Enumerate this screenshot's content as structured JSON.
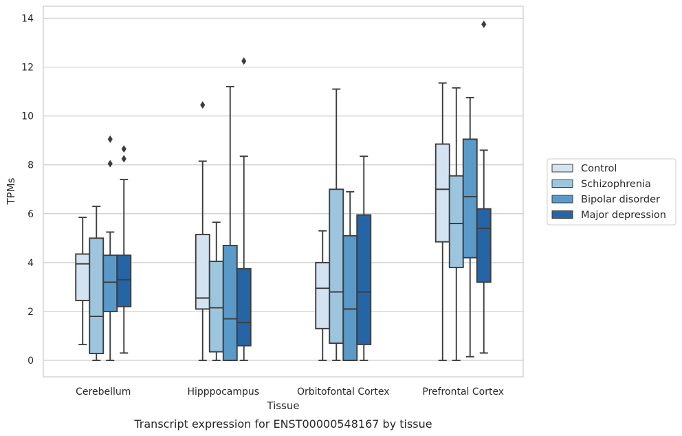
{
  "chart_data": {
    "type": "box",
    "caption": "Transcript expression for ENST00000548167 by tissue",
    "xlabel": "Tissue",
    "ylabel": "TPMs",
    "ylim": [
      -0.65,
      14.5
    ],
    "yticks": [
      0,
      2,
      4,
      6,
      8,
      10,
      12,
      14
    ],
    "grid": "horizontal",
    "legend_position": "right",
    "categories": [
      "Cerebellum",
      "Hipppocampus",
      "Orbitofontal Cortex",
      "Prefrontal Cortex"
    ],
    "series": [
      {
        "name": "Control",
        "color": "#d4e3f1",
        "boxes": [
          {
            "whislo": 0.65,
            "q1": 2.45,
            "med": 3.95,
            "q3": 4.35,
            "whishi": 5.85,
            "fliers": []
          },
          {
            "whislo": 0.0,
            "q1": 2.1,
            "med": 2.55,
            "q3": 5.15,
            "whishi": 8.15,
            "fliers": [
              10.45
            ]
          },
          {
            "whislo": 0.0,
            "q1": 1.3,
            "med": 2.95,
            "q3": 4.0,
            "whishi": 5.3,
            "fliers": []
          },
          {
            "whislo": 0.0,
            "q1": 4.85,
            "med": 7.0,
            "q3": 8.85,
            "whishi": 11.35,
            "fliers": []
          }
        ]
      },
      {
        "name": "Schizophrenia",
        "color": "#9ec5de",
        "boxes": [
          {
            "whislo": 0.0,
            "q1": 0.28,
            "med": 1.8,
            "q3": 5.0,
            "whishi": 6.3,
            "fliers": []
          },
          {
            "whislo": 0.0,
            "q1": 0.35,
            "med": 2.15,
            "q3": 4.05,
            "whishi": 5.65,
            "fliers": []
          },
          {
            "whislo": 0.0,
            "q1": 0.7,
            "med": 2.8,
            "q3": 7.0,
            "whishi": 11.1,
            "fliers": []
          },
          {
            "whislo": 0.0,
            "q1": 3.8,
            "med": 5.6,
            "q3": 7.55,
            "whishi": 11.15,
            "fliers": []
          }
        ]
      },
      {
        "name": "Bipolar disorder",
        "color": "#5a9ac9",
        "boxes": [
          {
            "whislo": 0.0,
            "q1": 2.0,
            "med": 3.2,
            "q3": 4.3,
            "whishi": 5.25,
            "fliers": [
              8.05,
              9.05
            ]
          },
          {
            "whislo": 0.0,
            "q1": 0.0,
            "med": 1.7,
            "q3": 4.7,
            "whishi": 11.2,
            "fliers": []
          },
          {
            "whislo": 0.0,
            "q1": 0.0,
            "med": 2.1,
            "q3": 5.1,
            "whishi": 6.9,
            "fliers": []
          },
          {
            "whislo": 0.15,
            "q1": 4.2,
            "med": 6.7,
            "q3": 9.05,
            "whishi": 10.75,
            "fliers": []
          }
        ]
      },
      {
        "name": "Major depression",
        "color": "#2565a6",
        "boxes": [
          {
            "whislo": 0.3,
            "q1": 2.2,
            "med": 3.3,
            "q3": 4.3,
            "whishi": 7.4,
            "fliers": [
              8.25,
              8.65
            ]
          },
          {
            "whislo": 0.0,
            "q1": 0.6,
            "med": 1.55,
            "q3": 3.75,
            "whishi": 8.35,
            "fliers": [
              12.25
            ]
          },
          {
            "whislo": 0.0,
            "q1": 0.65,
            "med": 2.8,
            "q3": 5.95,
            "whishi": 8.35,
            "fliers": []
          },
          {
            "whislo": 0.3,
            "q1": 3.2,
            "med": 5.4,
            "q3": 6.2,
            "whishi": 8.6,
            "fliers": [
              13.75
            ]
          }
        ]
      }
    ]
  }
}
